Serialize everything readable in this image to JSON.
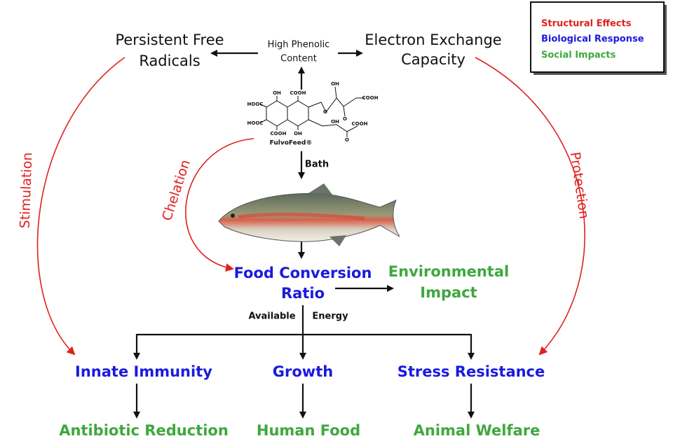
{
  "legend": {
    "items": [
      "Structural Effects",
      "Biological Response",
      "Social Impacts"
    ]
  },
  "top": {
    "left": [
      "Persistent Free",
      "Radicals"
    ],
    "center": [
      "High Phenolic",
      "Content"
    ],
    "right": [
      "Electron Exchange",
      "Capacity"
    ]
  },
  "molecule": {
    "name": "FulvoFeed®",
    "atoms": [
      "OH",
      "COOH",
      "OH",
      "COOH",
      "HOOC",
      "O",
      "HOOC",
      "COOH",
      "OH",
      "O",
      "OH",
      "COOH",
      "O"
    ]
  },
  "edges": {
    "bath": "Bath",
    "chelation": "Chelation",
    "stimulation": "Stimulation",
    "protection": "Protection",
    "available": "Available",
    "energy": "Energy"
  },
  "center": {
    "fcr": [
      "Food Conversion",
      "Ratio"
    ],
    "environmental": [
      "Environmental",
      "Impact"
    ]
  },
  "responses": [
    "Innate Immunity",
    "Growth",
    "Stress Resistance"
  ],
  "outcomes": [
    "Antibiotic Reduction",
    "Human Food",
    "Animal Welfare"
  ]
}
